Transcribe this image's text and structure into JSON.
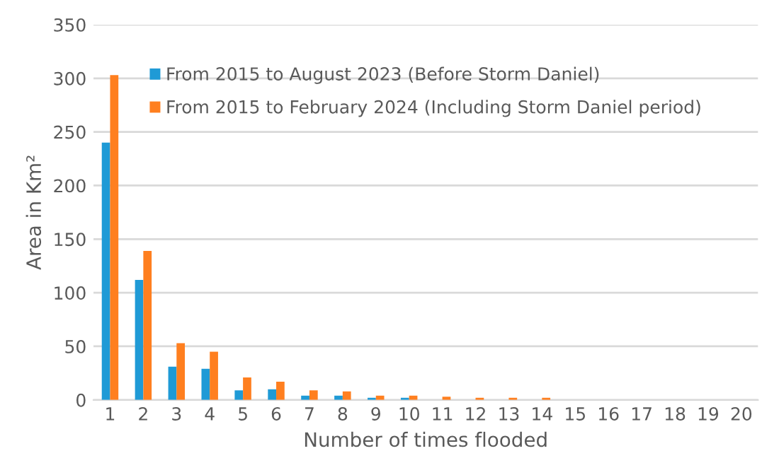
{
  "chart_data": {
    "type": "bar",
    "xlabel": "Number of times flooded",
    "ylabel": "Area in Km²",
    "categories": [
      "1",
      "2",
      "3",
      "4",
      "5",
      "6",
      "7",
      "8",
      "9",
      "10",
      "11",
      "12",
      "13",
      "14",
      "15",
      "16",
      "17",
      "18",
      "19",
      "20"
    ],
    "series": [
      {
        "name": "From 2015 to August 2023 (Before Storm Daniel)",
        "color": "#1f9ad6",
        "values": [
          240,
          112,
          31,
          29,
          9,
          10,
          4,
          4,
          2,
          2,
          0,
          0,
          0,
          0,
          0,
          0,
          0,
          0,
          0,
          0
        ]
      },
      {
        "name": "From 2015 to February 2024 (Including Storm Daniel period)",
        "color": "#ff7f1f",
        "values": [
          303,
          139,
          53,
          45,
          21,
          17,
          9,
          8,
          4,
          4,
          3,
          2,
          2,
          2,
          0,
          0,
          0,
          0,
          0,
          0
        ]
      }
    ],
    "ylim": [
      0,
      350
    ],
    "yticks": [
      0,
      50,
      100,
      150,
      200,
      250,
      300,
      350
    ],
    "grid": "y",
    "legend": "top"
  }
}
